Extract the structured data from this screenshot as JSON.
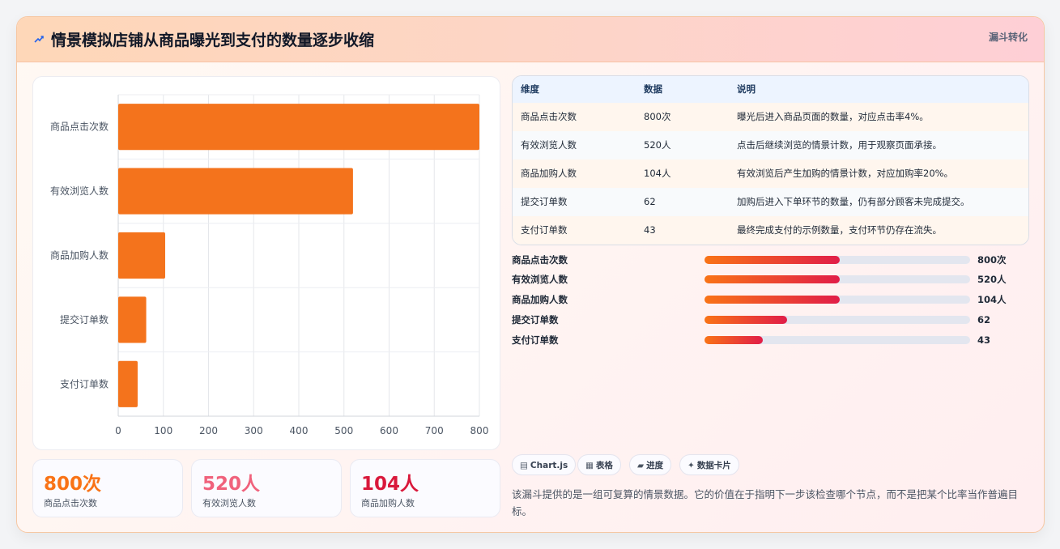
{
  "header": {
    "title": "情景模拟店铺从商品曝光到支付的数量逐步收缩",
    "tag": "漏斗转化"
  },
  "chart_data": {
    "type": "bar",
    "orientation": "horizontal",
    "categories": [
      "商品点击次数",
      "有效浏览人数",
      "商品加购人数",
      "提交订单数",
      "支付订单数"
    ],
    "values": [
      800,
      520,
      104,
      62,
      43
    ],
    "xlim": [
      0,
      800
    ],
    "xticks": [
      "0",
      "100",
      "200",
      "300",
      "400",
      "500",
      "600",
      "700",
      "800"
    ],
    "bar_color": "#f4731c",
    "grid": true
  },
  "stats": [
    {
      "value": "800次",
      "label": "商品点击次数",
      "color": "#f97316"
    },
    {
      "value": "520人",
      "label": "有效浏览人数",
      "color": "#f0627c"
    },
    {
      "value": "104人",
      "label": "商品加购人数",
      "color": "#d9183b"
    }
  ],
  "table": {
    "headers": [
      "维度",
      "数据",
      "说明"
    ],
    "rows": [
      [
        "商品点击次数",
        "800次",
        "曝光后进入商品页面的数量，对应点击率4%。"
      ],
      [
        "有效浏览人数",
        "520人",
        "点击后继续浏览的情景计数，用于观察页面承接。"
      ],
      [
        "商品加购人数",
        "104人",
        "有效浏览后产生加购的情景计数，对应加购率20%。"
      ],
      [
        "提交订单数",
        "62",
        "加购后进入下单环节的数量，仍有部分顾客未完成提交。"
      ],
      [
        "支付订单数",
        "43",
        "最终完成支付的示例数量，支付环节仍存在流失。"
      ]
    ]
  },
  "progress": [
    {
      "label": "商品点击次数",
      "value": "800次",
      "fraction": 0.51
    },
    {
      "label": "有效浏览人数",
      "value": "520人",
      "fraction": 0.51
    },
    {
      "label": "商品加购人数",
      "value": "104人",
      "fraction": 0.51
    },
    {
      "label": "提交订单数",
      "value": "62",
      "fraction": 0.31
    },
    {
      "label": "支付订单数",
      "value": "43",
      "fraction": 0.22
    }
  ],
  "chips": [
    {
      "icon": "chart-icon",
      "label": "Chart.js"
    },
    {
      "icon": "table-icon",
      "label": "表格"
    },
    {
      "icon": "progress-icon",
      "label": "进度"
    },
    {
      "icon": "sparkle-icon",
      "label": "数据卡片"
    }
  ],
  "note": "该漏斗提供的是一组可复算的情景数据。它的价值在于指明下一步该检查哪个节点，而不是把某个比率当作普遍目标。"
}
